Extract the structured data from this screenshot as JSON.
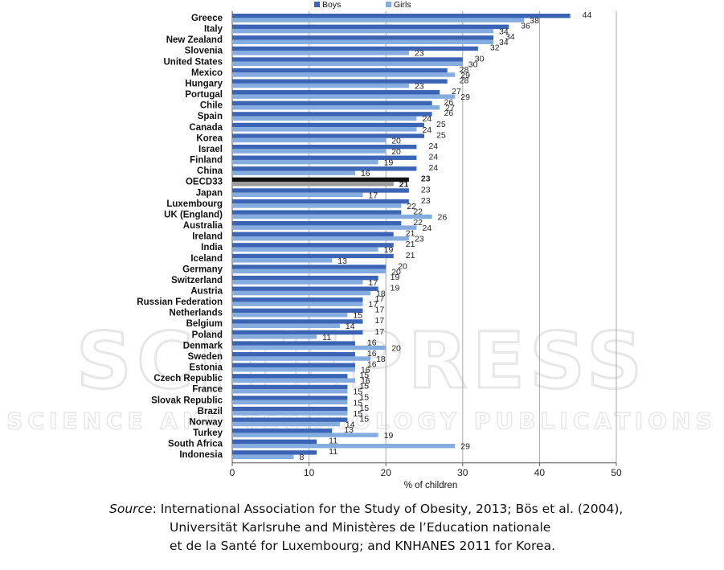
{
  "chart_data": {
    "type": "bar",
    "orientation": "horizontal",
    "xlabel": "% of children",
    "xlim": [
      0,
      50
    ],
    "xticks": [
      0,
      10,
      20,
      30,
      40,
      50
    ],
    "grid": true,
    "legend": "top",
    "categories": [
      "Greece",
      "Italy",
      "New Zealand",
      "Slovenia",
      "United States",
      "Mexico",
      "Hungary",
      "Portugal",
      "Chile",
      "Spain",
      "Canada",
      "Korea",
      "Israel",
      "Finland",
      "China",
      "OECD33",
      "Japan",
      "Luxembourg",
      "UK (England)",
      "Australia",
      "Ireland",
      "India",
      "Iceland",
      "Germany",
      "Switzerland",
      "Austria",
      "Russian Federation",
      "Netherlands",
      "Belgium",
      "Poland",
      "Denmark",
      "Sweden",
      "Estonia",
      "Czech Republic",
      "France",
      "Slovak Republic",
      "Brazil",
      "Norway",
      "Turkey",
      "South Africa",
      "Indonesia"
    ],
    "highlight": "OECD33",
    "series": [
      {
        "name": "Boys",
        "color": "#3b64b4",
        "values": [
          44,
          36,
          34,
          32,
          30,
          28,
          28,
          27,
          26,
          26,
          25,
          25,
          24,
          24,
          24,
          23,
          23,
          23,
          22,
          22,
          21,
          21,
          21,
          20,
          19,
          19,
          17,
          17,
          17,
          17,
          16,
          16,
          16,
          15,
          15,
          15,
          15,
          15,
          13,
          11,
          11
        ]
      },
      {
        "name": "Girls",
        "color": "#85acdf",
        "values": [
          38,
          34,
          34,
          23,
          30,
          29,
          23,
          29,
          27,
          24,
          24,
          20,
          20,
          19,
          16,
          21,
          17,
          22,
          26,
          24,
          23,
          19,
          13,
          20,
          17,
          18,
          17,
          15,
          14,
          11,
          20,
          18,
          16,
          16,
          15,
          15,
          15,
          14,
          19,
          29,
          8
        ]
      }
    ],
    "highlight_colors": {
      "boys": "#111111",
      "girls": "#9a9a9a"
    }
  },
  "source": {
    "label": "Source",
    "lines": [
      ": International Association for the Study of Obesity, 2013; Bös et al. (2004),",
      "Universität Karlsruhe and Ministères de l’Education nationale",
      "et de la Santé for Luxembourg; and KNHANES 2011 for Korea."
    ]
  },
  "watermark": {
    "main": "SCITEPRESS",
    "sub": "SCIENCE AND TECHNOLOGY PUBLICATIONS"
  }
}
